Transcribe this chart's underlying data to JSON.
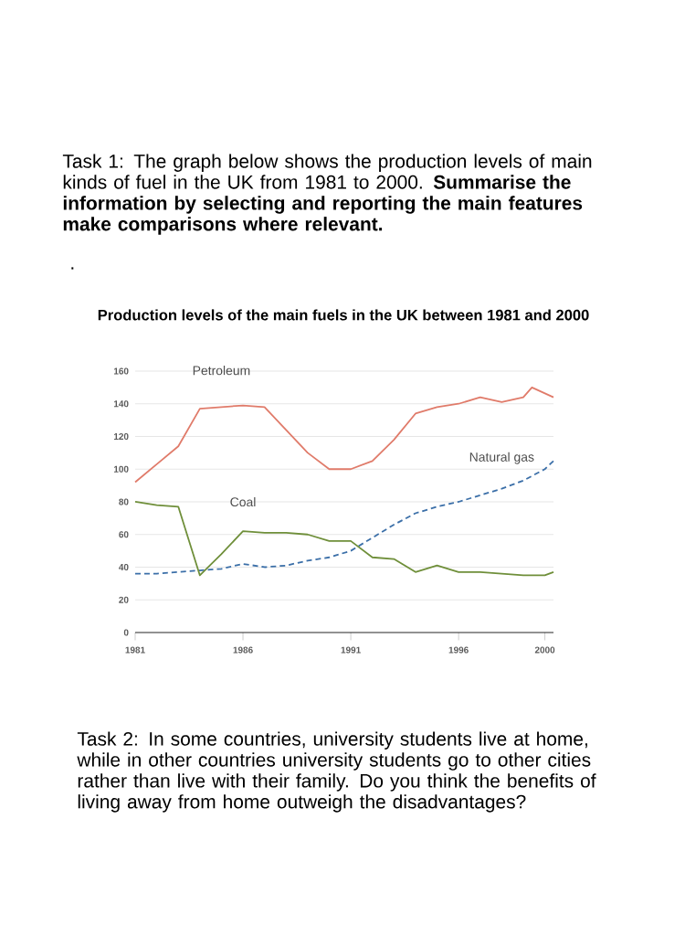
{
  "chart_data": {
    "type": "line",
    "title": "Production levels of the main fuels in the UK between 1981 and 2000",
    "annotations": [
      "Task 1: The graph below shows the production levels of main kinds of fuel in the UK from 1981 to 2000. **Summarise the information by selecting and reporting the main features make comparisons where relevant.**",
      ".",
      "Task 2: In some countries, university students live at home, while in other countries university students go to other cities rather than live with their family. Do you think the benefits of living away from home outweigh the disadvantages?"
    ],
    "xlim": [
      1981,
      2000.4
    ],
    "xticks": [
      1981,
      1986,
      1991,
      1996,
      2000
    ],
    "ylim": [
      0,
      160
    ],
    "yticks": [
      0,
      20,
      40,
      60,
      80,
      100,
      120,
      140,
      160
    ],
    "grid": "y",
    "series": [
      {
        "name": "Petroleum",
        "color": "#e07b6a",
        "line_style": "solid",
        "x": [
          1981,
          1982,
          1983,
          1984,
          1985,
          1986,
          1987,
          1988,
          1989,
          1990,
          1991,
          1992,
          1993,
          1994,
          1995,
          1996,
          1997,
          1998,
          1999,
          1999.4,
          2000.4
        ],
        "values": [
          92,
          103,
          114,
          137,
          138,
          139,
          138,
          124,
          110,
          100,
          100,
          105,
          118,
          134,
          138,
          140,
          144,
          141,
          144,
          150,
          144
        ]
      },
      {
        "name": "Natural gas",
        "color": "#3b6fa8",
        "line_style": "dashed",
        "x": [
          1981,
          1982,
          1983,
          1984,
          1985,
          1986,
          1987,
          1988,
          1989,
          1990,
          1991,
          1992,
          1993,
          1994,
          1995,
          1996,
          1997,
          1998,
          1999,
          2000,
          2000.4
        ],
        "values": [
          36,
          36,
          37,
          38,
          39,
          42,
          40,
          41,
          44,
          46,
          50,
          58,
          66,
          73,
          77,
          80,
          84,
          88,
          93,
          100,
          105
        ]
      },
      {
        "name": "Coal",
        "color": "#6f8f3a",
        "line_style": "solid",
        "x": [
          1981,
          1982,
          1983,
          1984,
          1985,
          1986,
          1987,
          1988,
          1989,
          1990,
          1991,
          1992,
          1993,
          1994,
          1995,
          1996,
          1997,
          1998,
          1999,
          2000,
          2000.4
        ],
        "values": [
          80,
          78,
          77,
          35,
          48,
          62,
          61,
          61,
          60,
          56,
          56,
          46,
          45,
          37,
          41,
          37,
          37,
          36,
          35,
          35,
          37
        ]
      }
    ]
  }
}
